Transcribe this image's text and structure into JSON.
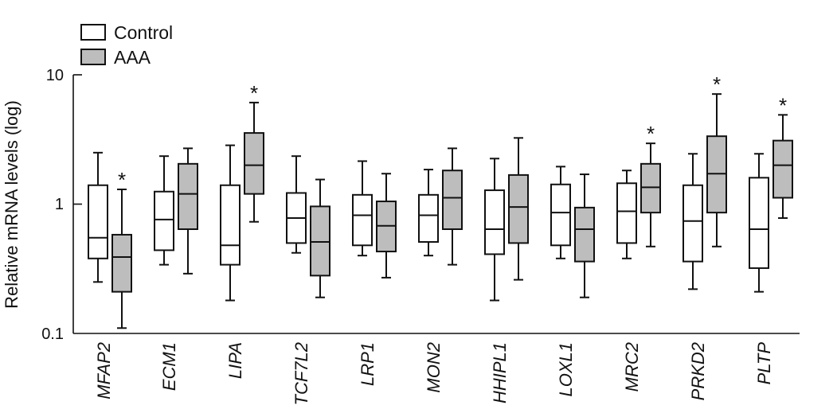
{
  "chart_data": {
    "type": "box",
    "ylabel": "Relative mRNA levels (log)",
    "yscale": "log",
    "ylim": [
      0.1,
      10
    ],
    "yticks": [
      0.1,
      1,
      10
    ],
    "ytick_labels": [
      "0.1",
      "1",
      "10"
    ],
    "categories": [
      "MFAP2",
      "ECM1",
      "LIPA",
      "TCF7L2",
      "LRP1",
      "MON2",
      "HHIPL1",
      "LOXL1",
      "MRC2",
      "PRKD2",
      "PLTP"
    ],
    "legend": {
      "position": "top-left",
      "entries": [
        "Control",
        "AAA"
      ]
    },
    "colors": {
      "Control": "#ffffff",
      "AAA": "#bdbdbd",
      "stroke": "#111111"
    },
    "significance_marker": "*",
    "series": [
      {
        "name": "Control",
        "boxes": [
          {
            "min": 0.25,
            "q1": 0.38,
            "median": 0.55,
            "q3": 1.4,
            "max": 2.5
          },
          {
            "min": 0.34,
            "q1": 0.44,
            "median": 0.76,
            "q3": 1.25,
            "max": 2.35
          },
          {
            "min": 0.18,
            "q1": 0.34,
            "median": 0.48,
            "q3": 1.4,
            "max": 2.85
          },
          {
            "min": 0.42,
            "q1": 0.5,
            "median": 0.78,
            "q3": 1.22,
            "max": 2.35
          },
          {
            "min": 0.4,
            "q1": 0.48,
            "median": 0.82,
            "q3": 1.18,
            "max": 2.15
          },
          {
            "min": 0.4,
            "q1": 0.51,
            "median": 0.82,
            "q3": 1.18,
            "max": 1.85
          },
          {
            "min": 0.18,
            "q1": 0.41,
            "median": 0.64,
            "q3": 1.28,
            "max": 2.25
          },
          {
            "min": 0.38,
            "q1": 0.48,
            "median": 0.86,
            "q3": 1.42,
            "max": 1.95
          },
          {
            "min": 0.38,
            "q1": 0.5,
            "median": 0.88,
            "q3": 1.45,
            "max": 1.82
          },
          {
            "min": 0.22,
            "q1": 0.36,
            "median": 0.74,
            "q3": 1.4,
            "max": 2.45
          },
          {
            "min": 0.21,
            "q1": 0.32,
            "median": 0.64,
            "q3": 1.6,
            "max": 2.45
          }
        ],
        "significant": [
          false,
          false,
          false,
          false,
          false,
          false,
          false,
          false,
          false,
          false,
          false
        ]
      },
      {
        "name": "AAA",
        "boxes": [
          {
            "min": 0.11,
            "q1": 0.21,
            "median": 0.39,
            "q3": 0.58,
            "max": 1.3
          },
          {
            "min": 0.29,
            "q1": 0.64,
            "median": 1.2,
            "q3": 2.05,
            "max": 2.7
          },
          {
            "min": 0.73,
            "q1": 1.2,
            "median": 2.0,
            "q3": 3.55,
            "max": 6.1
          },
          {
            "min": 0.19,
            "q1": 0.28,
            "median": 0.51,
            "q3": 0.96,
            "max": 1.55
          },
          {
            "min": 0.27,
            "q1": 0.43,
            "median": 0.68,
            "q3": 1.05,
            "max": 1.72
          },
          {
            "min": 0.34,
            "q1": 0.64,
            "median": 1.12,
            "q3": 1.82,
            "max": 2.7
          },
          {
            "min": 0.26,
            "q1": 0.5,
            "median": 0.95,
            "q3": 1.68,
            "max": 3.25
          },
          {
            "min": 0.19,
            "q1": 0.36,
            "median": 0.64,
            "q3": 0.94,
            "max": 1.7
          },
          {
            "min": 0.47,
            "q1": 0.86,
            "median": 1.35,
            "q3": 2.05,
            "max": 2.95
          },
          {
            "min": 0.47,
            "q1": 0.86,
            "median": 1.72,
            "q3": 3.35,
            "max": 7.1
          },
          {
            "min": 0.78,
            "q1": 1.12,
            "median": 2.0,
            "q3": 3.1,
            "max": 4.9
          }
        ],
        "significant": [
          true,
          false,
          true,
          false,
          false,
          false,
          false,
          false,
          true,
          true,
          true
        ]
      }
    ]
  }
}
